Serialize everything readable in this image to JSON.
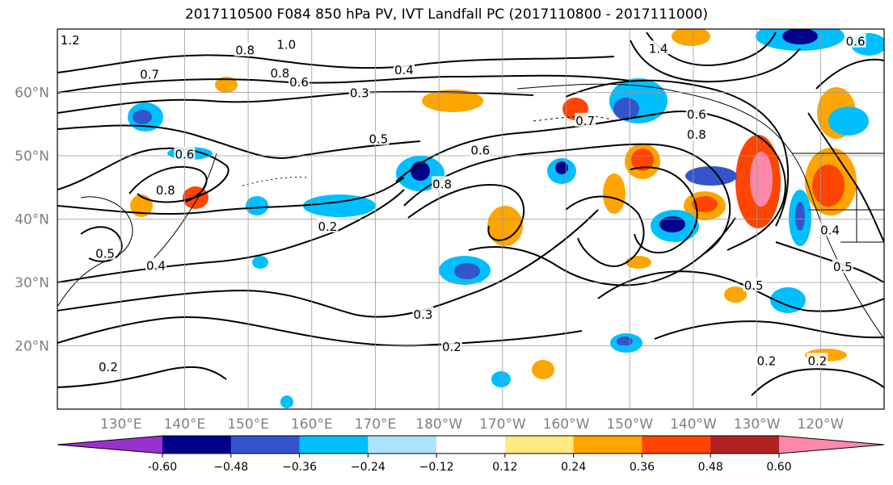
{
  "title": "2017110500 F084 850 hPa PV, IVT Landfall PC (2017110800 - 2017111000)",
  "map": {
    "lon_range": [
      120,
      250
    ],
    "lat_range": [
      10,
      70
    ],
    "lat_ticks": [
      {
        "lat": 20,
        "label": "20°N"
      },
      {
        "lat": 30,
        "label": "30°N"
      },
      {
        "lat": 40,
        "label": "40°N"
      },
      {
        "lat": 50,
        "label": "50°N"
      },
      {
        "lat": 60,
        "label": "60°N"
      }
    ],
    "lon_ticks": [
      {
        "lon": 130,
        "label": "130°E"
      },
      {
        "lon": 140,
        "label": "140°E"
      },
      {
        "lon": 150,
        "label": "150°E"
      },
      {
        "lon": 160,
        "label": "160°E"
      },
      {
        "lon": 170,
        "label": "170°E"
      },
      {
        "lon": 180,
        "label": "180°W"
      },
      {
        "lon": 190,
        "label": "170°W"
      },
      {
        "lon": 200,
        "label": "160°W"
      },
      {
        "lon": 210,
        "label": "150°W"
      },
      {
        "lon": 220,
        "label": "140°W"
      },
      {
        "lon": 230,
        "label": "130°W"
      },
      {
        "lon": 240,
        "label": "120°W"
      }
    ],
    "gridlines": true,
    "contour_labels": [
      {
        "text": "1.2",
        "lon": 122,
        "lat": 68.2
      },
      {
        "text": "0.7",
        "lon": 134.5,
        "lat": 62.8
      },
      {
        "text": "0.8",
        "lon": 149.5,
        "lat": 66.6
      },
      {
        "text": "1.0",
        "lon": 156,
        "lat": 67.5
      },
      {
        "lon": 155,
        "lat": 63,
        "text": "0.8"
      },
      {
        "text": "0.6",
        "lon": 158,
        "lat": 61.6
      },
      {
        "text": "0.3",
        "lon": 167.5,
        "lat": 59.9
      },
      {
        "text": "0.4",
        "lon": 174.5,
        "lat": 63.5
      },
      {
        "text": "0.5",
        "lon": 170.5,
        "lat": 52.6
      },
      {
        "text": "0.6",
        "lon": 140,
        "lat": 50.2
      },
      {
        "text": "0.8",
        "lon": 137,
        "lat": 44.5
      },
      {
        "text": "0.6",
        "lon": 186.5,
        "lat": 50.8
      },
      {
        "text": "0.8",
        "lon": 180.5,
        "lat": 45.5
      },
      {
        "text": "0.2",
        "lon": 162.5,
        "lat": 38.8
      },
      {
        "text": "0.4",
        "lon": 135.5,
        "lat": 32.6
      },
      {
        "text": "0.3",
        "lon": 177.5,
        "lat": 24.9
      },
      {
        "text": "0.2",
        "lon": 182,
        "lat": 19.8
      },
      {
        "text": "0.2",
        "lon": 128,
        "lat": 16.6
      },
      {
        "text": "0.5",
        "lon": 127.5,
        "lat": 34.5
      },
      {
        "text": "1.4",
        "lon": 214.5,
        "lat": 66.9
      },
      {
        "text": "0.6",
        "lon": 220.5,
        "lat": 56.5
      },
      {
        "text": "0.8",
        "lon": 220.5,
        "lat": 53.3
      },
      {
        "text": "0.7",
        "lon": 203,
        "lat": 55.5
      },
      {
        "text": "0.5",
        "lon": 229.5,
        "lat": 29.5
      },
      {
        "text": "0.5",
        "lon": 243.5,
        "lat": 32.4
      },
      {
        "text": "0.4",
        "lon": 241.5,
        "lat": 38.2
      },
      {
        "text": "0.2",
        "lon": 231.5,
        "lat": 17.6
      },
      {
        "text": "0.2",
        "lon": 239.5,
        "lat": 17.6
      },
      {
        "text": "0.6",
        "lon": 245.5,
        "lat": 68
      }
    ]
  },
  "colorbar": {
    "colors": [
      "#9932CC",
      "#00008B",
      "#3355CC",
      "#00BFFF",
      "#ADE3FF",
      "#FFFFFF",
      "#FFEA80",
      "#FFA500",
      "#FF4500",
      "#B22222",
      "#FF88AA"
    ],
    "ticks": [
      "-0.60",
      "−0.48",
      "−0.36",
      "−0.24",
      "−0.12",
      "0.12",
      "0.24",
      "0.36",
      "0.48",
      "0.60"
    ]
  },
  "colors": {
    "grid": "#999999",
    "contour": "#000000",
    "tick_label": "#808080"
  }
}
